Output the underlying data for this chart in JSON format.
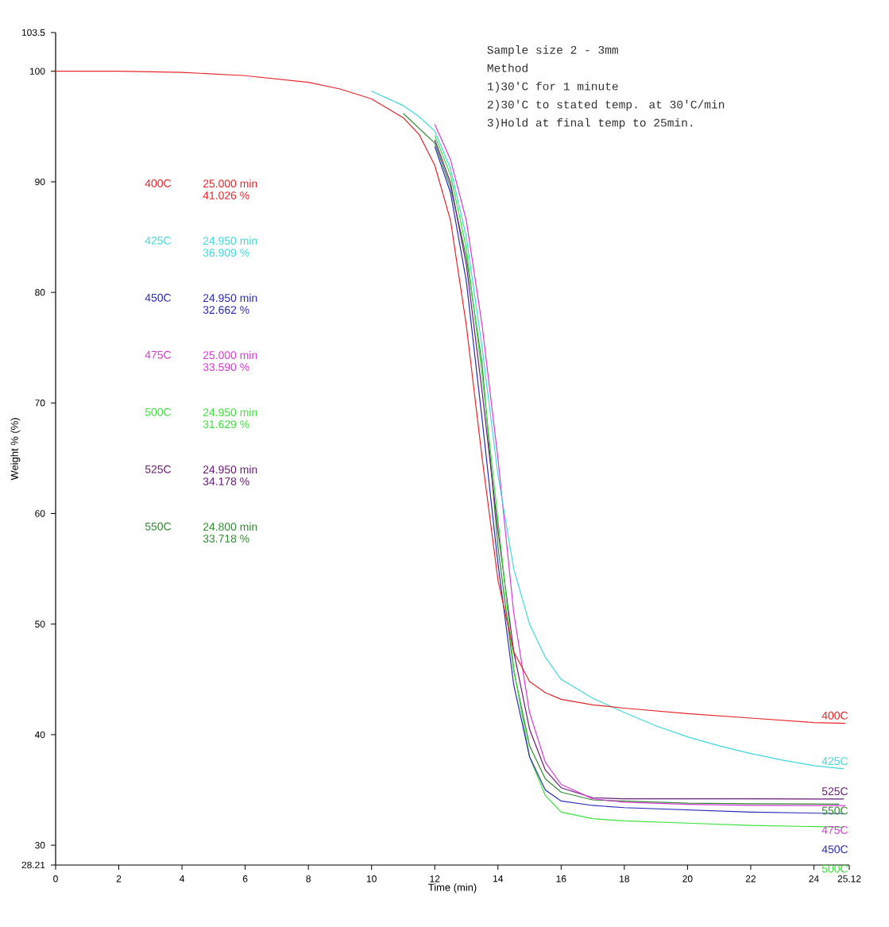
{
  "chart_data": {
    "type": "line",
    "xlabel": "Time (min)",
    "ylabel": "Weight % (%)",
    "xlim": [
      0,
      25.12
    ],
    "ylim": [
      28.21,
      103.5
    ],
    "xticks": [
      0,
      2,
      4,
      6,
      8,
      10,
      12,
      14,
      16,
      18,
      20,
      22,
      24,
      25.12
    ],
    "yticks": [
      28.21,
      30,
      40,
      50,
      60,
      70,
      80,
      90,
      100,
      103.5
    ],
    "legend": false,
    "grid": false,
    "marker": "none",
    "series": [
      {
        "name": "400C",
        "color": "#e8262b",
        "x": [
          0,
          2,
          4,
          6,
          8,
          9,
          10,
          11,
          11.5,
          12,
          12.5,
          13,
          13.5,
          14,
          14.5,
          15,
          15.5,
          16,
          17,
          18,
          20,
          22,
          24,
          25
        ],
        "values": [
          100,
          100,
          99.9,
          99.6,
          99.0,
          98.4,
          97.5,
          95.8,
          94.3,
          91.5,
          86.5,
          77,
          65,
          54,
          47.5,
          44.8,
          43.8,
          43.2,
          42.7,
          42.4,
          41.9,
          41.5,
          41.1,
          41.026
        ]
      },
      {
        "name": "425C",
        "color": "#40d8e0",
        "x": [
          10,
          11,
          11.5,
          12,
          12.5,
          13,
          13.5,
          14,
          14.5,
          15,
          15.5,
          16,
          17,
          18,
          19,
          20,
          21,
          22,
          23,
          24,
          24.95
        ],
        "values": [
          98.2,
          96.9,
          95.9,
          94.6,
          91.2,
          85,
          75,
          63.5,
          55,
          50,
          47,
          45,
          43.3,
          42,
          40.8,
          39.8,
          39,
          38.3,
          37.7,
          37.2,
          36.909
        ]
      },
      {
        "name": "450C",
        "color": "#2b2bb8",
        "x": [
          12,
          12.5,
          13,
          13.5,
          14,
          14.5,
          15,
          15.5,
          16,
          17,
          18,
          20,
          22,
          24.95
        ],
        "values": [
          93.2,
          89,
          81,
          68.5,
          55.5,
          44.5,
          38,
          35,
          34,
          33.6,
          33.4,
          33.2,
          33.0,
          32.862
        ]
      },
      {
        "name": "475C",
        "color": "#d83ad8",
        "x": [
          12,
          12.5,
          13,
          13.5,
          14,
          14.5,
          15,
          15.5,
          16,
          17,
          18,
          20,
          22,
          25
        ],
        "values": [
          95.2,
          92,
          86.5,
          77,
          65,
          51,
          42,
          37.5,
          35.5,
          34.2,
          33.9,
          33.7,
          33.6,
          33.59
        ]
      },
      {
        "name": "500C",
        "color": "#3ee03e",
        "x": [
          12,
          12.5,
          13,
          13.5,
          14,
          14.5,
          15,
          15.5,
          16,
          17,
          18,
          20,
          22,
          24.95
        ],
        "values": [
          94.2,
          90.6,
          84,
          72.5,
          59.5,
          46,
          38,
          34.5,
          33,
          32.4,
          32.2,
          32,
          31.8,
          31.629
        ]
      },
      {
        "name": "525C",
        "color": "#6a1a7a",
        "x": [
          12,
          12.5,
          13,
          13.5,
          14,
          14.5,
          15,
          15.5,
          16,
          17,
          18,
          20,
          22,
          24.95
        ],
        "values": [
          93.8,
          89.9,
          82.5,
          71,
          58.5,
          47.5,
          40.5,
          36.8,
          35.2,
          34.3,
          34.2,
          34.2,
          34.2,
          34.178
        ]
      },
      {
        "name": "550C",
        "color": "#2e8b2e",
        "x": [
          11,
          12,
          12.5,
          13,
          13.5,
          14,
          14.5,
          15,
          15.5,
          16,
          17,
          18,
          20,
          22,
          24.8
        ],
        "values": [
          96.2,
          93.5,
          89.5,
          83.2,
          73.5,
          57,
          45.8,
          39,
          36,
          34.8,
          34.1,
          null,
          33.8,
          33.75,
          33.718
        ]
      }
    ],
    "annotations": [
      "25.000 min",
      "41.026 %",
      "24.950 min",
      "36.909 %",
      "24.950 min",
      "32.662 %",
      "25.000 min",
      "33.590 %",
      "24.950 min",
      "31.629 %",
      "24.950 min",
      "34.178 %",
      "24.800 min",
      "33.718 %",
      "Sample size 2 - 3mm",
      "Method",
      "1)30'C for 1 minute",
      "2)30'C to stated temp. at 30'C/min",
      "3)Hold at final temp to 25min."
    ]
  }
}
